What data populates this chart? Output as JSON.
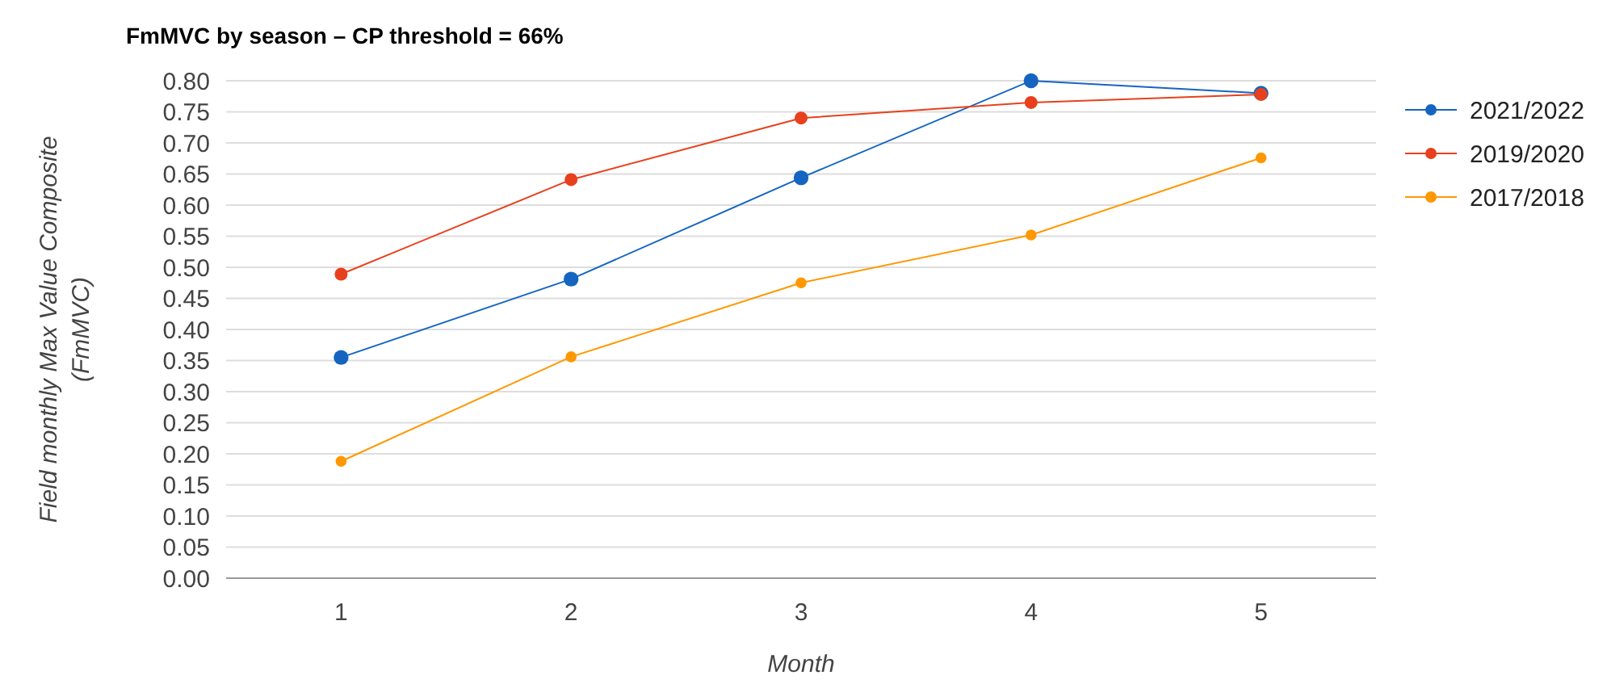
{
  "chart_data": {
    "type": "line",
    "title": "FmMVC by season – CP threshold = 66%",
    "xlabel": "Month",
    "ylabel": "Field monthly Max Value Composite\n(FmMVC)",
    "x": [
      1,
      2,
      3,
      4,
      5
    ],
    "series": [
      {
        "name": "2021/2022",
        "color": "#1565c0",
        "values": [
          0.355,
          0.481,
          0.644,
          0.8,
          0.78
        ]
      },
      {
        "name": "2019/2020",
        "color": "#e8401c",
        "values": [
          0.489,
          0.641,
          0.74,
          0.765,
          0.778
        ]
      },
      {
        "name": "2017/2018",
        "color": "#ff9800",
        "values": [
          0.188,
          0.356,
          0.475,
          0.552,
          0.676
        ]
      }
    ],
    "xlim": [
      0.5,
      5.5
    ],
    "xticks": [
      1,
      2,
      3,
      4,
      5
    ],
    "ylim": [
      0,
      0.8
    ],
    "yticks": [
      {
        "value": 0,
        "label": "0.00"
      },
      {
        "value": 0.05,
        "label": "0.05"
      },
      {
        "value": 0.1,
        "label": "0.10"
      },
      {
        "value": 0.15,
        "label": "0.15"
      },
      {
        "value": 0.2,
        "label": "0.20"
      },
      {
        "value": 0.25,
        "label": "0.25"
      },
      {
        "value": 0.3,
        "label": "0.30"
      },
      {
        "value": 0.35,
        "label": "0.35"
      },
      {
        "value": 0.4,
        "label": "0.40"
      },
      {
        "value": 0.45,
        "label": "0.45"
      },
      {
        "value": 0.5,
        "label": "0.50"
      },
      {
        "value": 0.55,
        "label": "0.55"
      },
      {
        "value": 0.6,
        "label": "0.60"
      },
      {
        "value": 0.65,
        "label": "0.65"
      },
      {
        "value": 0.7,
        "label": "0.70"
      },
      {
        "value": 0.75,
        "label": "0.75"
      },
      {
        "value": 0.8,
        "label": "0.80"
      }
    ],
    "grid": "y",
    "legend": "top right",
    "marker": "circle",
    "line_style": "solid"
  }
}
